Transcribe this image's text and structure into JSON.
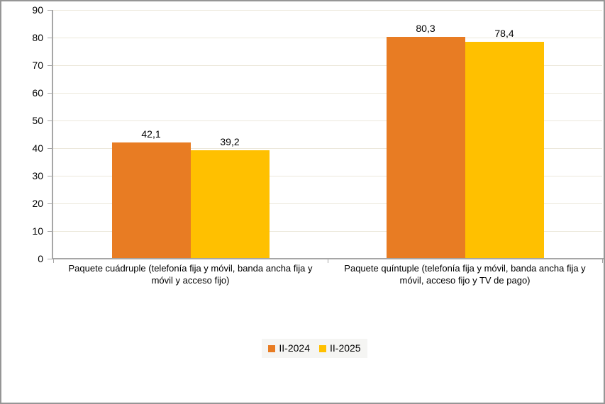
{
  "chart_data": {
    "type": "bar",
    "title": "",
    "xlabel": "",
    "ylabel": "",
    "categories": [
      "Paquete cuádruple (telefonía fija y móvil, banda ancha fija y móvil y acceso fijo)",
      "Paquete quíntuple (telefonía fija y móvil, banda ancha fija y móvil, acceso fijo y TV de pago)"
    ],
    "series": [
      {
        "name": "II-2024",
        "color": "#E87C23",
        "values": [
          42.1,
          80.3
        ],
        "value_labels": [
          "42,1",
          "80,3"
        ]
      },
      {
        "name": "II-2025",
        "color": "#FFC000",
        "values": [
          39.2,
          78.4
        ],
        "value_labels": [
          "39,2",
          "78,4"
        ]
      }
    ],
    "ylim": [
      0,
      90
    ],
    "ytick_step": 10,
    "ytick_labels": [
      "0",
      "10",
      "20",
      "30",
      "40",
      "50",
      "60",
      "70",
      "80",
      "90"
    ],
    "grid": true,
    "legend_position": "bottom"
  },
  "colors": {
    "series_ii_2024": "#E87C23",
    "series_ii_2025": "#FFC000",
    "gridline": "#ECE8DB",
    "axis": "#A6A6A6",
    "frame_border": "#969696",
    "legend_background": "#F5F5F3",
    "text": "#000000",
    "background": "#FFFFFF"
  }
}
